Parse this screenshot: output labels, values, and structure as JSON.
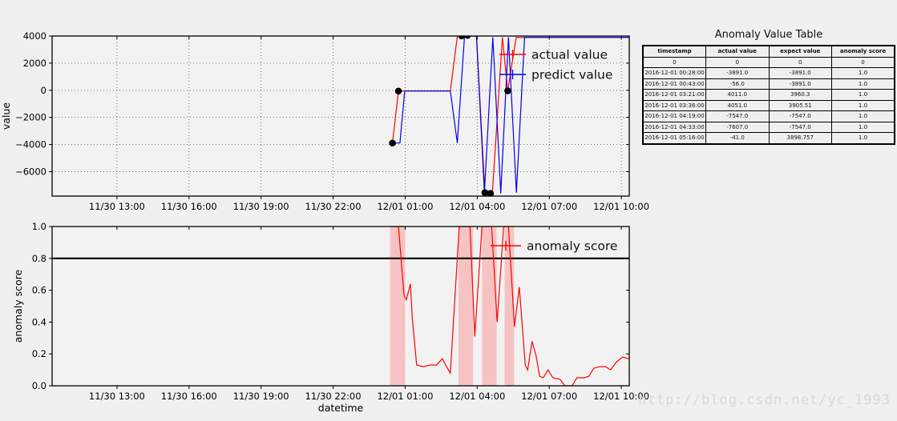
{
  "watermark": "http://blog.csdn.net/yc_1993",
  "table": {
    "title": "Anomaly Value Table",
    "headers": [
      "timestamp",
      "actual value",
      "expect value",
      "anomaly score"
    ],
    "rows": [
      [
        "0",
        "0",
        "0",
        "0"
      ],
      [
        "2016-12-01 00:28:00",
        "-3891.0",
        "-3891.0",
        "1.0"
      ],
      [
        "2016-12-01 00:43:00",
        "-56.0",
        "-3891.0",
        "1.0"
      ],
      [
        "2016-12-01 03:21:00",
        "4011.0",
        "3960.3",
        "1.0"
      ],
      [
        "2016-12-01 03:36:00",
        "4051.0",
        "3905.51",
        "1.0"
      ],
      [
        "2016-12-01 04:19:00",
        "-7547.0",
        "-7547.0",
        "1.0"
      ],
      [
        "2016-12-01 04:33:00",
        "-7607.0",
        "-7547.0",
        "1.0"
      ],
      [
        "2016-12-01 05:16:00",
        "-41.0",
        "3898.757",
        "1.0"
      ]
    ]
  },
  "chart_data": [
    {
      "type": "line",
      "title": "",
      "xlabel": "",
      "ylabel": "value",
      "x_unit": "hours since 11/30 12:00",
      "xlim": [
        -1.7,
        22.33
      ],
      "ylim": [
        -7800,
        4000
      ],
      "grid": true,
      "yticks": {
        "values": [
          4000,
          2000,
          0,
          -2000,
          -4000,
          -6000
        ],
        "labels": [
          "4000",
          "2000",
          "0",
          "−2000",
          "−4000",
          "−6000"
        ]
      },
      "xticks": {
        "values": [
          1,
          4,
          7,
          10,
          13,
          16,
          19,
          22
        ],
        "labels": [
          "11/30 13:00",
          "11/30 16:00",
          "11/30 19:00",
          "11/30 22:00",
          "12/01 01:00",
          "12/01 04:00",
          "12/01 07:00",
          "12/01 10:00"
        ]
      },
      "legend": {
        "position": "upper right",
        "frame": false,
        "items": [
          {
            "label": "actual value",
            "color": "#ff0000"
          },
          {
            "label": "predict value",
            "color": "#0000ee"
          }
        ]
      },
      "series": [
        {
          "name": "actual value",
          "color": "#ff0000",
          "points": [
            [
              12.47,
              -3891
            ],
            [
              12.72,
              -56
            ],
            [
              14.88,
              -56
            ],
            [
              15.17,
              3990
            ],
            [
              15.35,
              4011
            ],
            [
              15.6,
              4051
            ],
            [
              15.97,
              4000
            ],
            [
              16.32,
              -7547
            ],
            [
              16.55,
              -7607
            ],
            [
              16.63,
              -7607
            ],
            [
              17.05,
              3900
            ],
            [
              17.27,
              -41
            ],
            [
              17.62,
              3891
            ],
            [
              22.33,
              3891
            ]
          ]
        },
        {
          "name": "predict value",
          "color": "#0000ee",
          "points": [
            [
              12.47,
              -3891
            ],
            [
              12.78,
              -3891
            ],
            [
              12.98,
              -56
            ],
            [
              14.88,
              -56
            ],
            [
              15.17,
              -3891
            ],
            [
              15.47,
              3990
            ],
            [
              15.97,
              3990
            ],
            [
              16.3,
              -7547
            ],
            [
              16.65,
              3905
            ],
            [
              16.98,
              -7600
            ],
            [
              17.3,
              3898
            ],
            [
              17.63,
              -7547
            ],
            [
              17.97,
              3898
            ],
            [
              22.33,
              3898
            ]
          ]
        }
      ],
      "anomaly_markers": {
        "color": "#000000",
        "shape": "circle",
        "points": [
          [
            12.47,
            -3891
          ],
          [
            12.72,
            -56
          ],
          [
            15.35,
            4011
          ],
          [
            15.6,
            4051
          ],
          [
            16.32,
            -7547
          ],
          [
            16.55,
            -7607
          ],
          [
            17.27,
            -41
          ]
        ]
      }
    },
    {
      "type": "line",
      "title": "",
      "xlabel": "datetime",
      "ylabel": "anomaly score",
      "x_unit": "hours since 11/30 12:00",
      "xlim": [
        -1.7,
        22.33
      ],
      "ylim": [
        0,
        1
      ],
      "grid": false,
      "threshold": 0.8,
      "yticks": {
        "values": [
          1.0,
          0.8,
          0.6,
          0.4,
          0.2,
          0.0
        ],
        "labels": [
          "1.0",
          "0.8",
          "0.6",
          "0.4",
          "0.2",
          "0.0"
        ]
      },
      "xticks": {
        "values": [
          1,
          4,
          7,
          10,
          13,
          16,
          19,
          22
        ],
        "labels": [
          "11/30 13:00",
          "11/30 16:00",
          "11/30 19:00",
          "11/30 22:00",
          "12/01 01:00",
          "12/01 04:00",
          "12/01 07:00",
          "12/01 10:00"
        ]
      },
      "legend": {
        "position": "upper right",
        "frame": false,
        "items": [
          {
            "label": "anomaly score",
            "color": "#ff0000"
          }
        ]
      },
      "bands": {
        "color": "#ff6b6b",
        "opacity": 0.35,
        "ranges": [
          [
            12.37,
            13.0
          ],
          [
            15.22,
            15.83
          ],
          [
            16.2,
            16.81
          ],
          [
            17.14,
            17.53
          ]
        ]
      },
      "series": [
        {
          "name": "anomaly score",
          "color": "#ff0000",
          "points": [
            [
              12.55,
              1.0
            ],
            [
              12.72,
              1.0
            ],
            [
              12.95,
              0.57
            ],
            [
              13.05,
              0.54
            ],
            [
              13.22,
              0.64
            ],
            [
              13.3,
              0.42
            ],
            [
              13.48,
              0.13
            ],
            [
              13.75,
              0.12
            ],
            [
              14.05,
              0.13
            ],
            [
              14.3,
              0.13
            ],
            [
              14.55,
              0.17
            ],
            [
              14.72,
              0.12
            ],
            [
              14.88,
              0.08
            ],
            [
              15.25,
              1.0
            ],
            [
              15.7,
              1.0
            ],
            [
              15.9,
              0.31
            ],
            [
              16.2,
              1.0
            ],
            [
              16.6,
              1.0
            ],
            [
              16.83,
              0.4
            ],
            [
              17.1,
              1.0
            ],
            [
              17.3,
              1.0
            ],
            [
              17.55,
              0.37
            ],
            [
              17.75,
              0.62
            ],
            [
              18.0,
              0.13
            ],
            [
              18.1,
              0.1
            ],
            [
              18.28,
              0.28
            ],
            [
              18.45,
              0.19
            ],
            [
              18.6,
              0.06
            ],
            [
              18.75,
              0.05
            ],
            [
              18.95,
              0.1
            ],
            [
              19.15,
              0.05
            ],
            [
              19.45,
              0.04
            ],
            [
              19.65,
              0.0
            ],
            [
              19.95,
              0.0
            ],
            [
              20.15,
              0.05
            ],
            [
              20.45,
              0.05
            ],
            [
              20.65,
              0.06
            ],
            [
              20.85,
              0.11
            ],
            [
              21.1,
              0.12
            ],
            [
              21.35,
              0.12
            ],
            [
              21.55,
              0.1
            ],
            [
              21.8,
              0.15
            ],
            [
              22.05,
              0.18
            ],
            [
              22.3,
              0.17
            ]
          ]
        }
      ]
    }
  ]
}
